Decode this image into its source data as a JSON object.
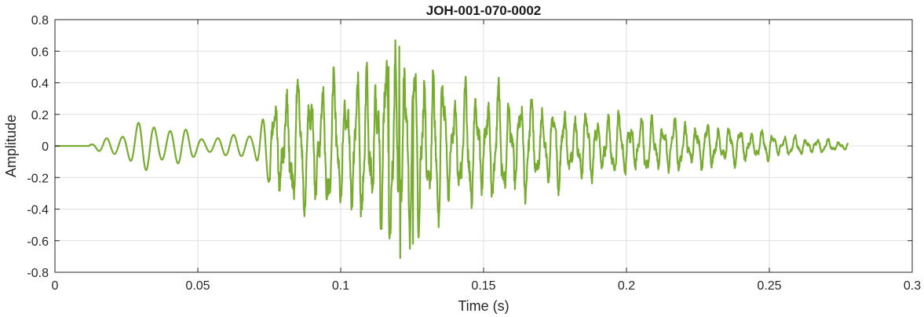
{
  "chart_data": {
    "type": "line",
    "title": "JOH-001-070-0002",
    "xlabel": "Time (s)",
    "ylabel": "Amplitude",
    "xlim": [
      0,
      0.3
    ],
    "ylim": [
      -0.8,
      0.8
    ],
    "grid": true,
    "x_ticks": [
      "0",
      "0.05",
      "0.1",
      "0.15",
      "0.2",
      "0.25",
      "0.3"
    ],
    "x_tick_values": [
      0,
      0.05,
      0.1,
      0.15,
      0.2,
      0.25,
      0.3
    ],
    "y_ticks": [
      "0.8",
      "0.6",
      "0.4",
      "0.2",
      "0",
      "-0.2",
      "-0.4",
      "-0.6",
      "-0.8"
    ],
    "y_tick_values": [
      0.8,
      0.6,
      0.4,
      0.2,
      0,
      -0.2,
      -0.4,
      -0.6,
      -0.8
    ],
    "series": [
      {
        "color": "#77ac30",
        "x_end": 0.2775,
        "envelope": {
          "t": [
            0,
            0.012,
            0.02,
            0.03,
            0.04,
            0.05,
            0.06,
            0.07,
            0.08,
            0.09,
            0.1,
            0.11,
            0.12,
            0.13,
            0.14,
            0.15,
            0.16,
            0.18,
            0.2,
            0.22,
            0.24,
            0.26,
            0.2775
          ],
          "a": [
            0,
            0.005,
            0.07,
            0.16,
            0.15,
            0.07,
            0.06,
            0.12,
            0.35,
            0.38,
            0.38,
            0.45,
            0.6,
            0.45,
            0.34,
            0.32,
            0.3,
            0.2,
            0.17,
            0.14,
            0.1,
            0.05,
            0.025
          ]
        },
        "peak_max": {
          "x": 0.1205,
          "y": 0.63
        },
        "peak_min": {
          "x": 0.1205,
          "y": -0.71
        }
      }
    ]
  }
}
